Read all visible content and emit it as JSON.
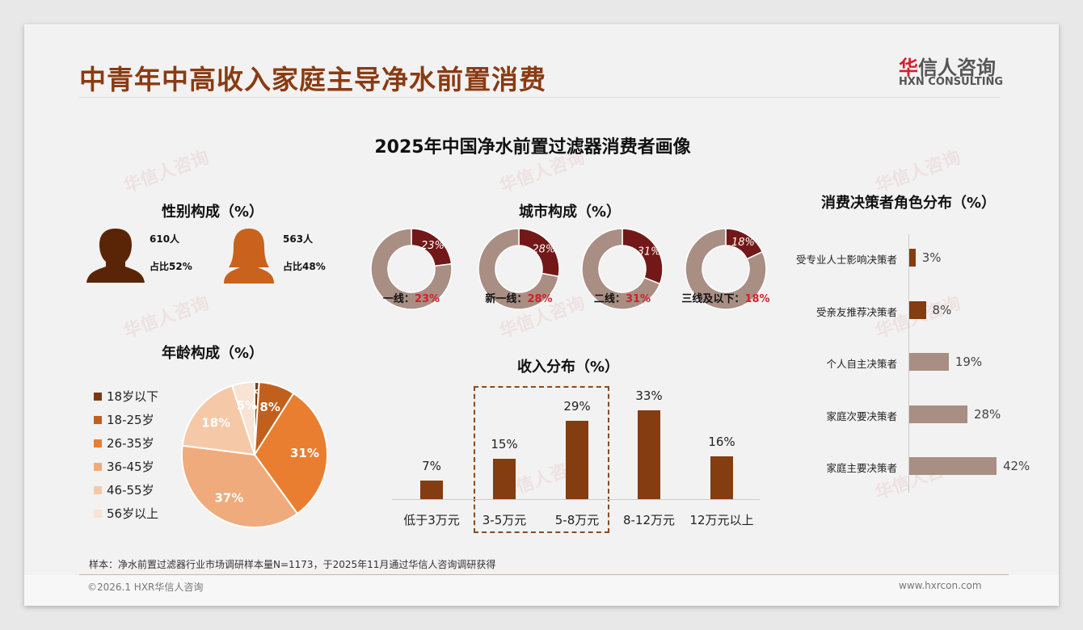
{
  "header": {
    "title": "中青年中高收入家庭主导净水前置消费",
    "logo_cn_red": "华",
    "logo_cn": "信人咨询",
    "logo_en": "HXN CONSULTING"
  },
  "main_title": "2025年中国净水前置过滤器消费者画像",
  "watermark": "华信人咨询",
  "gender": {
    "title": "性别构成（%）",
    "male": {
      "count": "610人",
      "share": "占比52%",
      "color": "#5a2507"
    },
    "female": {
      "count": "563人",
      "share": "占比48%",
      "color": "#c8621d"
    }
  },
  "chart_data": [
    {
      "type": "pie",
      "title": "年龄构成（%）",
      "categories": [
        "18岁以下",
        "18-25岁",
        "26-35岁",
        "36-45岁",
        "46-55岁",
        "56岁以上"
      ],
      "values": [
        1,
        8,
        31,
        37,
        18,
        5
      ],
      "labels": [
        "1%",
        "8%",
        "31%",
        "37%",
        "18%",
        "5%"
      ],
      "colors": [
        "#7a3a10",
        "#c0601c",
        "#ea7e30",
        "#f0ab7c",
        "#f5c9a8",
        "#f8e3d4"
      ],
      "legend": "left"
    },
    {
      "type": "pie",
      "title": "城市构成（%）",
      "subtype": "donut",
      "items": [
        {
          "name": "一线：",
          "value": 23,
          "label": "23%"
        },
        {
          "name": "新一线：",
          "value": 28,
          "label": "28%"
        },
        {
          "name": "二线：",
          "value": 31,
          "label": "31%"
        },
        {
          "name": "三线及以下：",
          "value": 18,
          "label": "18%"
        }
      ],
      "colors": {
        "value": "#731818",
        "rest": "#a98e84",
        "value_text": "#d0202a"
      }
    },
    {
      "type": "bar",
      "title": "收入分布（%）",
      "categories": [
        "低于3万元",
        "3-5万元",
        "5-8万元",
        "8-12万元",
        "12万元以上"
      ],
      "values": [
        7,
        15,
        29,
        33,
        16
      ],
      "labels": [
        "7%",
        "15%",
        "29%",
        "33%",
        "16%"
      ],
      "color": "#843c11",
      "highlight": [
        "3-5万元",
        "5-8万元"
      ],
      "ylim": [
        0,
        35
      ]
    },
    {
      "type": "bar",
      "orientation": "horizontal",
      "title": "消费决策者角色分布（%）",
      "categories": [
        "受专业人士影响决策者",
        "受亲友推荐决策者",
        "个人自主决策者",
        "家庭次要决策者",
        "家庭主要决策者"
      ],
      "values": [
        3,
        8,
        19,
        28,
        42
      ],
      "labels": [
        "3%",
        "8%",
        "19%",
        "28%",
        "42%"
      ],
      "colors": [
        "#843c11",
        "#843c11",
        "#a98e84",
        "#a98e84",
        "#a98e84"
      ]
    }
  ],
  "footer": {
    "note": "样本：净水前置过滤器行业市场调研样本量N=1173，于2025年11月通过华信人咨询调研获得",
    "copyright": "©2026.1 HXR华信人咨询",
    "url": "www.hxrcon.com"
  }
}
